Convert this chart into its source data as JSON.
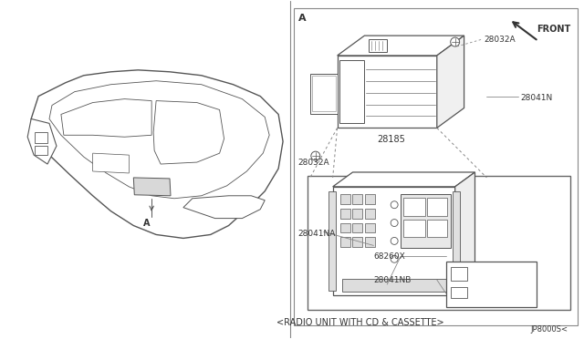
{
  "bg_color": "#ffffff",
  "line_color": "#555555",
  "fig_width": 6.4,
  "fig_height": 3.72,
  "dpi": 100,
  "part_labels": {
    "28032A_top": "28032A",
    "28041N": "28041N",
    "28185": "28185",
    "28032A_bot": "28032A",
    "28041NA": "28041NA",
    "68260X": "68260X",
    "28041NB": "28041NB"
  },
  "bottom_text": "<RADIO UNIT WITH CD & CASSETTE>",
  "bottom_ref": "JP8000S<",
  "front_label": "FRONT",
  "label_A_top": "A",
  "left_label_A": "A"
}
